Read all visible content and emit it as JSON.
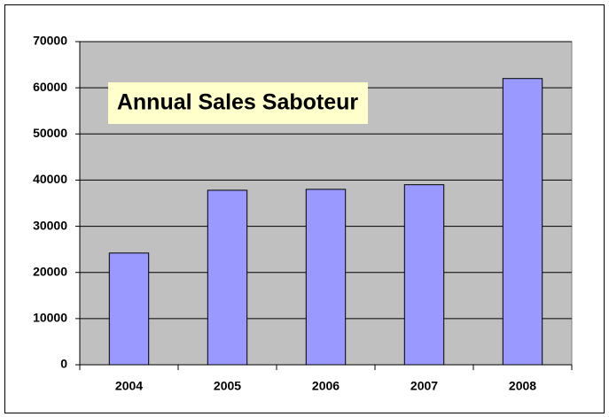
{
  "chart_data": {
    "type": "bar",
    "title": "Annual Sales Saboteur",
    "categories": [
      "2004",
      "2005",
      "2006",
      "2007",
      "2008"
    ],
    "values": [
      24200,
      37800,
      38000,
      39000,
      62000
    ],
    "color": "#9999ff",
    "ylim": [
      0,
      70000
    ],
    "yticks": [
      0,
      10000,
      20000,
      30000,
      40000,
      50000,
      60000,
      70000
    ],
    "grid": true
  }
}
